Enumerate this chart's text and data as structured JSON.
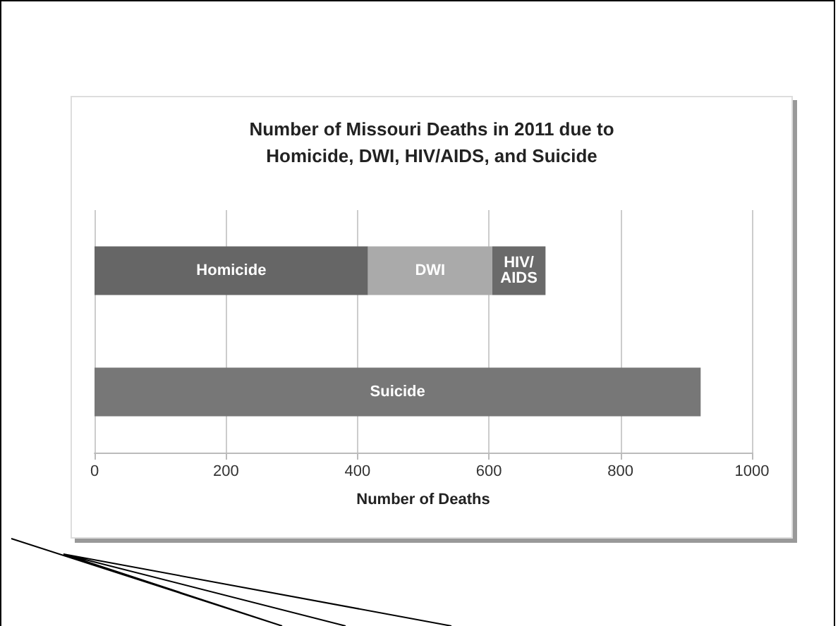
{
  "chart_data": {
    "type": "bar",
    "title": "Number of Missouri Deaths in 2011 due to\nHomicide, DWI, HIV/AIDS, and Suicide",
    "xlabel": "Number of Deaths",
    "orientation": "horizontal",
    "stacked": true,
    "categories": [
      null,
      null
    ],
    "series": [
      {
        "name": "Homicide",
        "color": "#666666",
        "values": [
          416,
          null
        ]
      },
      {
        "name": "DWI",
        "color": "#aaaaaa",
        "values": [
          189,
          null
        ]
      },
      {
        "name": "HIV/AIDS",
        "color": "#6a6a6a",
        "values": [
          81,
          null
        ]
      },
      {
        "name": "Suicide",
        "color": "#777777",
        "values": [
          null,
          922
        ]
      }
    ],
    "xlim": [
      0,
      1000
    ],
    "xticks": [
      0,
      200,
      400,
      600,
      800,
      1000
    ],
    "grid": "x",
    "legend": false
  }
}
